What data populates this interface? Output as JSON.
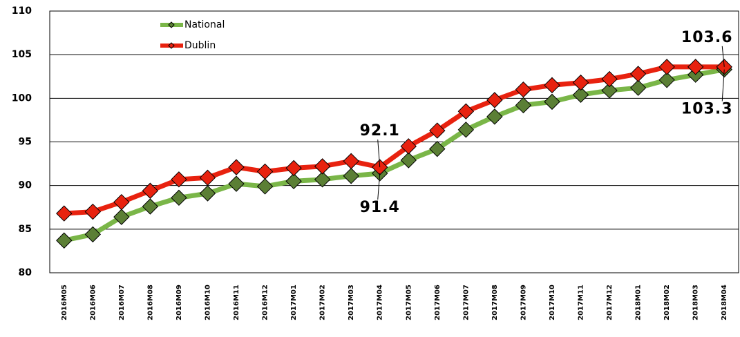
{
  "chart_data": {
    "type": "line",
    "categories": [
      "2016M05",
      "2016M06",
      "2016M07",
      "2016M08",
      "2016M09",
      "2016M10",
      "2016M11",
      "2016M12",
      "2017M01",
      "2017M02",
      "2017M03",
      "2017M04",
      "2017M05",
      "2017M06",
      "2017M07",
      "2017M08",
      "2017M09",
      "2017M10",
      "2017M11",
      "2017M12",
      "2018M01",
      "2018M02",
      "2018M03",
      "2018M04"
    ],
    "series": [
      {
        "name": "National",
        "color": "#7ab648",
        "marker_color": "#5b7f35",
        "values": [
          83.7,
          84.4,
          86.4,
          87.6,
          88.6,
          89.1,
          90.2,
          89.9,
          90.5,
          90.7,
          91.1,
          91.4,
          92.9,
          94.2,
          96.4,
          97.9,
          99.2,
          99.6,
          100.4,
          100.9,
          101.2,
          102.1,
          102.7,
          103.3
        ],
        "value_labels": [
          null,
          null,
          null,
          null,
          null,
          null,
          null,
          null,
          null,
          null,
          null,
          "91.4",
          null,
          null,
          null,
          null,
          null,
          null,
          null,
          null,
          null,
          null,
          null,
          "103.3"
        ]
      },
      {
        "name": "Dublin",
        "color": "#e8220f",
        "marker_color": "#e8220f",
        "values": [
          86.8,
          87.0,
          88.1,
          89.4,
          90.7,
          90.9,
          92.1,
          91.6,
          92.0,
          92.2,
          92.8,
          92.1,
          94.5,
          96.3,
          98.5,
          99.8,
          101.0,
          101.5,
          101.8,
          102.2,
          102.8,
          103.6,
          103.6,
          103.6
        ],
        "value_labels": [
          null,
          null,
          null,
          null,
          null,
          null,
          null,
          null,
          null,
          null,
          null,
          "92.1",
          null,
          null,
          null,
          null,
          null,
          null,
          null,
          null,
          null,
          null,
          null,
          "103.6"
        ]
      }
    ],
    "ylim": [
      80,
      110
    ],
    "yticks": [
      80,
      85,
      90,
      95,
      100,
      105,
      110
    ],
    "grid": true,
    "legend": "top-left"
  }
}
